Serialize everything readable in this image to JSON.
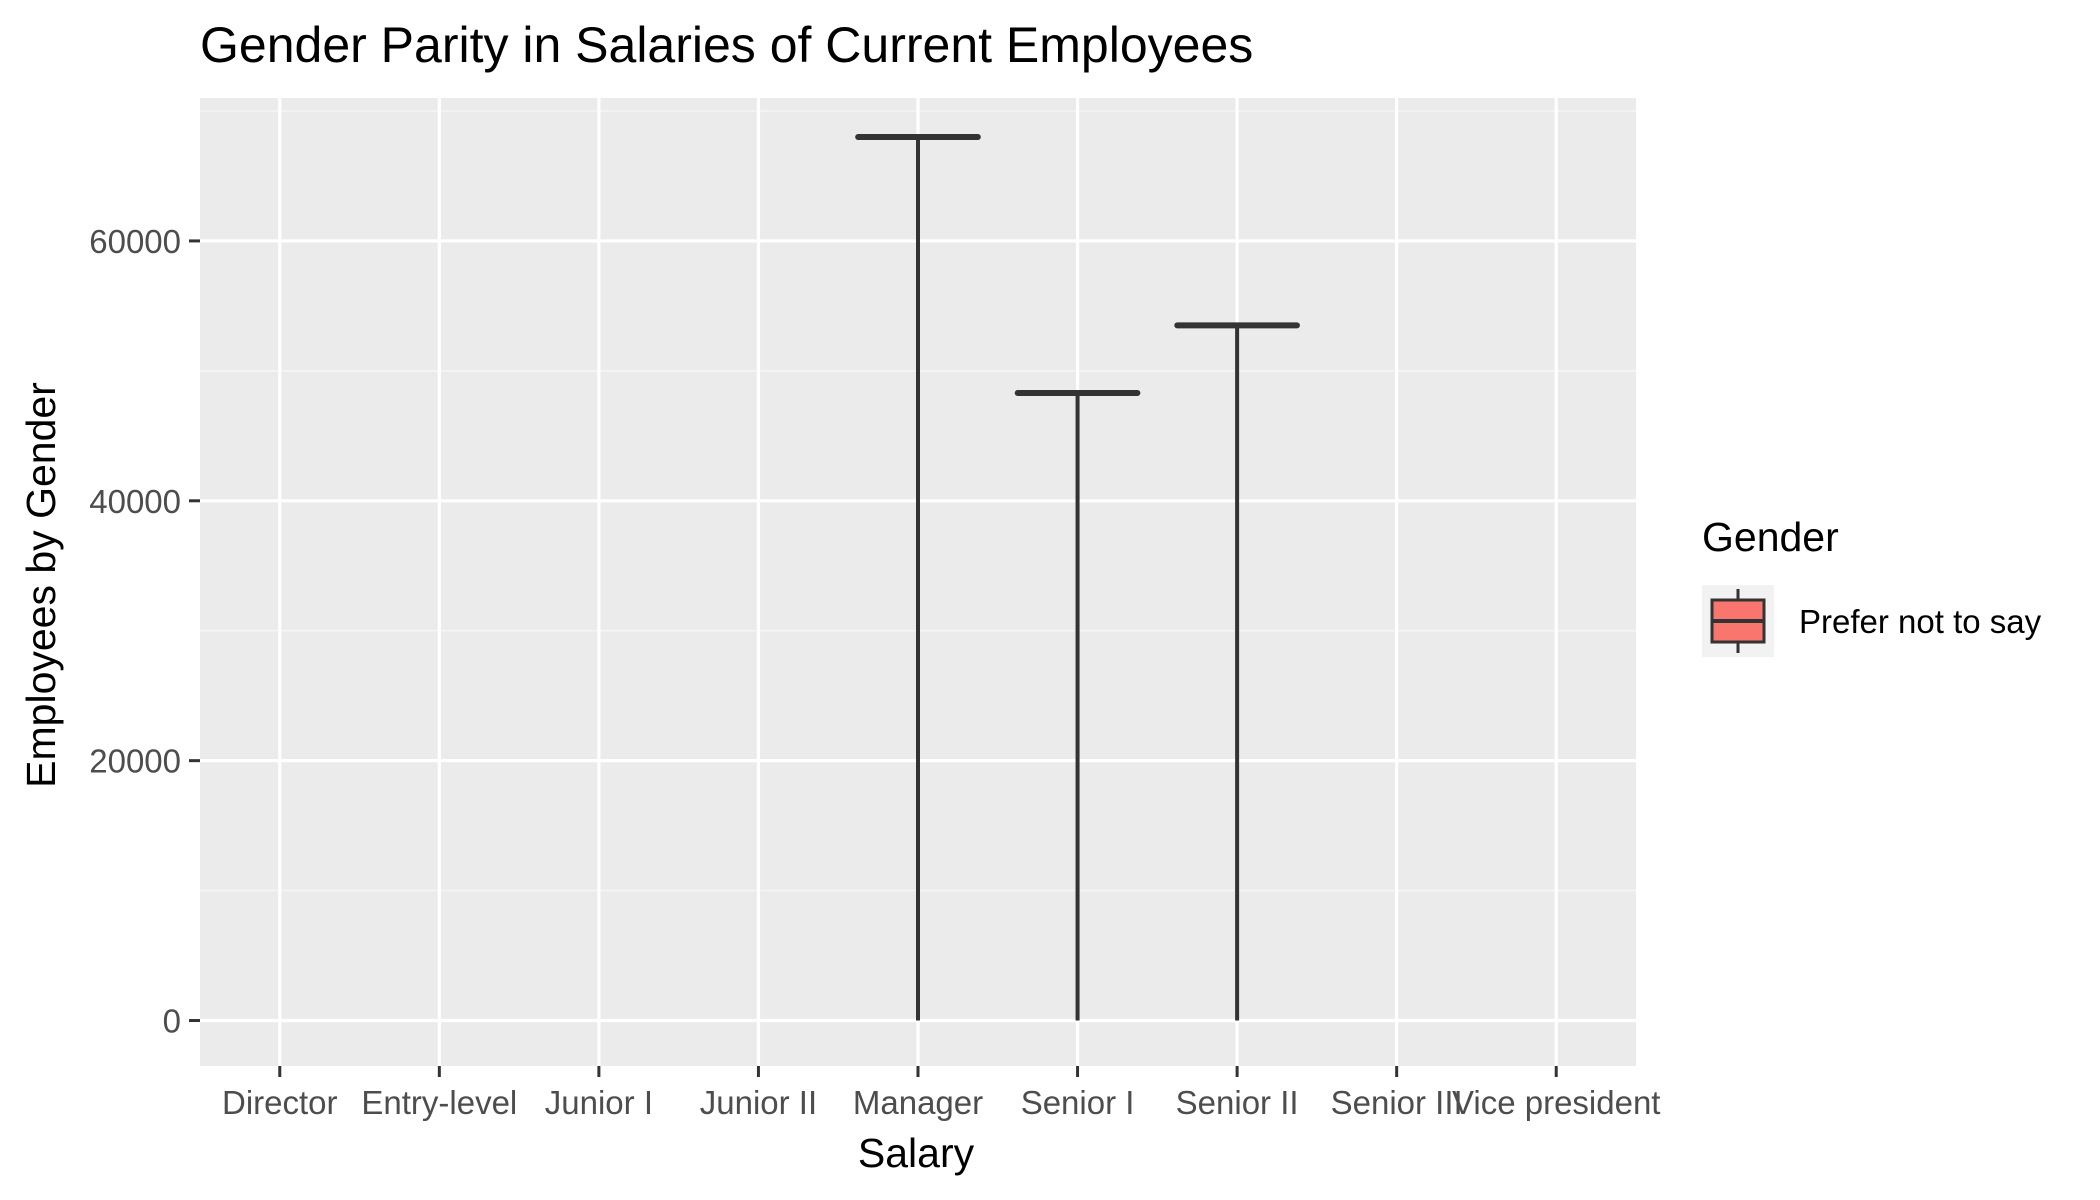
{
  "chart_data": {
    "type": "boxplot",
    "title": "Gender Parity in Salaries of Current Employees",
    "xlabel": "Salary",
    "ylabel": "Employees by Gender",
    "categories": [
      "Director",
      "Entry-level",
      "Junior I",
      "Junior II",
      "Manager",
      "Senior I",
      "Senior II",
      "Senior III",
      "Vice president"
    ],
    "ylim": [
      -3500,
      71000
    ],
    "yticks": [
      0,
      20000,
      40000,
      60000
    ],
    "grid": true,
    "legend": {
      "title": "Gender",
      "position": "right",
      "entries": [
        {
          "label": "Prefer not to say",
          "color": "#f8766d"
        }
      ]
    },
    "series": [
      {
        "name": "Prefer not to say",
        "color": "#f8766d",
        "boxes": [
          {
            "category": "Manager",
            "whisker_low": 0,
            "value": 68000
          },
          {
            "category": "Senior I",
            "whisker_low": 0,
            "value": 48300
          },
          {
            "category": "Senior II",
            "whisker_low": 0,
            "value": 53500
          }
        ]
      }
    ]
  },
  "colors": {
    "panel_background": "#ebebeb",
    "grid_major": "#ffffff",
    "grid_minor": "#f5f5f5",
    "box_line": "#333333",
    "tick_mark": "#333333",
    "legend_key_background": "#f2f2f2"
  }
}
